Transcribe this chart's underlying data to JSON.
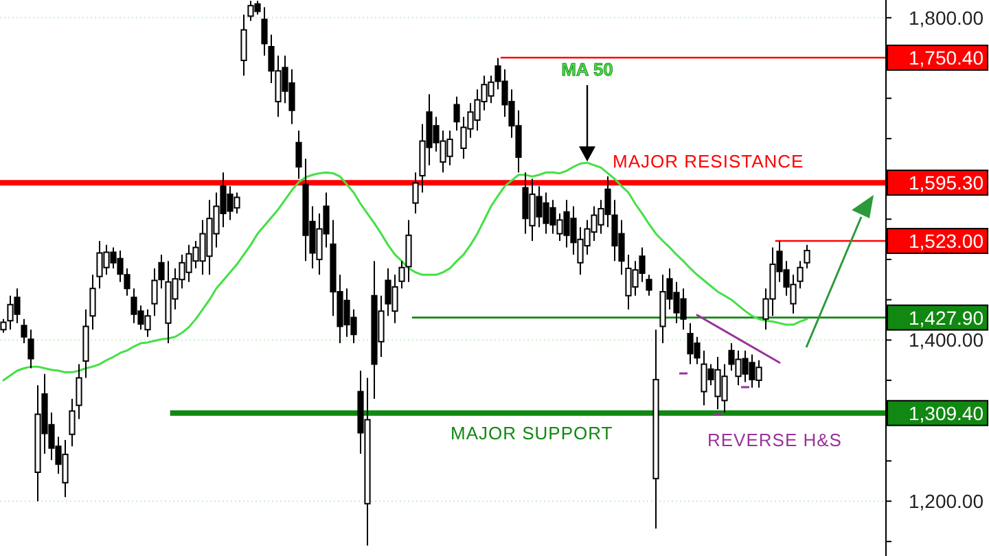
{
  "chart_data": {
    "type": "candlestick",
    "categories": [
      null,
      null,
      null,
      null,
      null,
      null,
      null,
      null,
      null,
      null,
      null,
      null,
      null,
      null,
      null,
      null,
      null,
      null,
      null,
      null,
      null,
      null,
      null,
      null,
      null,
      null,
      null,
      null,
      null,
      null,
      null,
      null,
      null,
      null,
      null,
      null,
      null,
      null,
      null,
      null,
      null,
      null,
      null,
      null,
      null,
      null,
      null,
      null,
      null,
      null,
      null,
      null,
      null,
      null,
      null,
      null,
      null,
      null,
      null,
      null,
      null,
      null,
      null,
      null,
      null,
      null,
      null,
      null,
      null,
      null,
      null,
      null,
      null,
      null,
      null,
      null,
      null,
      null,
      null,
      null,
      null,
      null,
      null,
      null,
      null,
      null,
      null,
      null,
      null,
      null,
      null,
      null,
      null,
      null,
      null,
      null,
      null,
      null,
      null,
      null,
      null,
      null,
      null,
      null,
      null,
      null,
      null,
      null,
      null,
      null,
      null,
      null,
      null,
      null,
      null,
      null,
      null,
      null,
      null,
      null,
      null,
      null,
      null,
      null,
      null,
      null,
      null,
      null,
      null
    ],
    "ohlc": [
      [
        1413,
        1426,
        1409,
        1422
      ],
      [
        1424,
        1455,
        1413,
        1444
      ],
      [
        1453,
        1464,
        1421,
        1432
      ],
      [
        1418,
        1426,
        1396,
        1404
      ],
      [
        1401,
        1413,
        1365,
        1377
      ],
      [
        1236,
        1344,
        1200,
        1308
      ],
      [
        1333,
        1358,
        1259,
        1284
      ],
      [
        1295,
        1310,
        1251,
        1266
      ],
      [
        1268,
        1280,
        1234,
        1246
      ],
      [
        1223,
        1276,
        1205,
        1258
      ],
      [
        1283,
        1327,
        1268,
        1312
      ],
      [
        1319,
        1370,
        1302,
        1353
      ],
      [
        1374,
        1438,
        1353,
        1417
      ],
      [
        1430,
        1481,
        1413,
        1464
      ],
      [
        1479,
        1523,
        1464,
        1508
      ],
      [
        1490,
        1518,
        1481,
        1509
      ],
      [
        1509,
        1515,
        1489,
        1496
      ],
      [
        1501,
        1511,
        1472,
        1482
      ],
      [
        1481,
        1489,
        1455,
        1464
      ],
      [
        1453,
        1464,
        1421,
        1432
      ],
      [
        1436,
        1443,
        1413,
        1420
      ],
      [
        1413,
        1438,
        1404,
        1430
      ],
      [
        1445,
        1489,
        1430,
        1474
      ],
      [
        1496,
        1506,
        1464,
        1475
      ],
      [
        1421,
        1498,
        1396,
        1472
      ],
      [
        1451,
        1489,
        1438,
        1476
      ],
      [
        1475,
        1506,
        1464,
        1496
      ],
      [
        1484,
        1518,
        1472,
        1507
      ],
      [
        1498,
        1523,
        1489,
        1515
      ],
      [
        1498,
        1549,
        1481,
        1532
      ],
      [
        1504,
        1574,
        1481,
        1551
      ],
      [
        1532,
        1583,
        1515,
        1566
      ],
      [
        1591,
        1608,
        1540,
        1557
      ],
      [
        1581,
        1591,
        1549,
        1560
      ],
      [
        1564,
        1583,
        1557,
        1577
      ],
      [
        1747,
        1804,
        1728,
        1785
      ],
      [
        1802,
        1821,
        1796,
        1815
      ],
      [
        1817,
        1821,
        1804,
        1808
      ],
      [
        1798,
        1813,
        1753,
        1768
      ],
      [
        1764,
        1779,
        1719,
        1734
      ],
      [
        1696,
        1753,
        1677,
        1734
      ],
      [
        1738,
        1753,
        1694,
        1709
      ],
      [
        1719,
        1736,
        1668,
        1685
      ],
      [
        1645,
        1660,
        1600,
        1615
      ],
      [
        1593,
        1625,
        1498,
        1530
      ],
      [
        1547,
        1566,
        1489,
        1508
      ],
      [
        1500,
        1557,
        1481,
        1538
      ],
      [
        1566,
        1583,
        1515,
        1532
      ],
      [
        1519,
        1549,
        1430,
        1460
      ],
      [
        1460,
        1481,
        1396,
        1417
      ],
      [
        1449,
        1464,
        1404,
        1419
      ],
      [
        1428,
        1438,
        1396,
        1407
      ],
      [
        1336,
        1362,
        1259,
        1285
      ],
      [
        1197,
        1353,
        1145,
        1301
      ],
      [
        1455,
        1498,
        1327,
        1370
      ],
      [
        1398,
        1455,
        1379,
        1436
      ],
      [
        1474,
        1489,
        1430,
        1445
      ],
      [
        1436,
        1481,
        1421,
        1466
      ],
      [
        1473,
        1498,
        1464,
        1490
      ],
      [
        1491,
        1549,
        1472,
        1530
      ],
      [
        1570,
        1608,
        1557,
        1595
      ],
      [
        1604,
        1668,
        1583,
        1647
      ],
      [
        1683,
        1705,
        1617,
        1639
      ],
      [
        1666,
        1677,
        1634,
        1645
      ],
      [
        1621,
        1660,
        1608,
        1647
      ],
      [
        1628,
        1660,
        1617,
        1649
      ],
      [
        1692,
        1702,
        1660,
        1671
      ],
      [
        1638,
        1677,
        1625,
        1664
      ],
      [
        1662,
        1694,
        1651,
        1683
      ],
      [
        1673,
        1711,
        1660,
        1698
      ],
      [
        1696,
        1728,
        1685,
        1717
      ],
      [
        1703,
        1728,
        1694,
        1720
      ],
      [
        1740,
        1750,
        1711,
        1721
      ],
      [
        1721,
        1736,
        1677,
        1692
      ],
      [
        1696,
        1711,
        1651,
        1666
      ],
      [
        1666,
        1685,
        1608,
        1627
      ],
      [
        1589,
        1608,
        1532,
        1551
      ],
      [
        1542,
        1600,
        1523,
        1581
      ],
      [
        1578,
        1591,
        1540,
        1553
      ],
      [
        1570,
        1583,
        1532,
        1545
      ],
      [
        1564,
        1574,
        1532,
        1543
      ],
      [
        1532,
        1557,
        1523,
        1549
      ],
      [
        1559,
        1574,
        1515,
        1530
      ],
      [
        1551,
        1566,
        1506,
        1521
      ],
      [
        1496,
        1540,
        1481,
        1525
      ],
      [
        1517,
        1549,
        1506,
        1538
      ],
      [
        1534,
        1566,
        1523,
        1555
      ],
      [
        1543,
        1574,
        1532,
        1563
      ],
      [
        1587,
        1603,
        1540,
        1556
      ],
      [
        1555,
        1574,
        1498,
        1517
      ],
      [
        1532,
        1549,
        1481,
        1498
      ],
      [
        1455,
        1506,
        1438,
        1489
      ],
      [
        1466,
        1498,
        1455,
        1487
      ],
      [
        1504,
        1515,
        1472,
        1483
      ],
      [
        1475,
        1481,
        1455,
        1462
      ],
      [
        1228,
        1413,
        1166,
        1351
      ],
      [
        1417,
        1481,
        1396,
        1460
      ],
      [
        1476,
        1489,
        1438,
        1451
      ],
      [
        1459,
        1472,
        1421,
        1434
      ],
      [
        1451,
        1464,
        1413,
        1426
      ],
      [
        1408,
        1421,
        1370,
        1383
      ],
      [
        1396,
        1404,
        1370,
        1378
      ],
      [
        1336,
        1387,
        1319,
        1370
      ],
      [
        1364,
        1370,
        1344,
        1351
      ],
      [
        1330,
        1379,
        1314,
        1363
      ],
      [
        1325,
        1370,
        1310,
        1355
      ],
      [
        1387,
        1396,
        1362,
        1370
      ],
      [
        1355,
        1387,
        1344,
        1376
      ],
      [
        1377,
        1387,
        1348,
        1358
      ],
      [
        1372,
        1382,
        1341,
        1351
      ],
      [
        1350,
        1375,
        1341,
        1366
      ],
      [
        1426,
        1464,
        1413,
        1451
      ],
      [
        1451,
        1515,
        1430,
        1494
      ],
      [
        1510,
        1523,
        1472,
        1485
      ],
      [
        1487,
        1498,
        1455,
        1466
      ],
      [
        1445,
        1481,
        1433,
        1469
      ],
      [
        1473,
        1498,
        1464,
        1490
      ],
      [
        1496,
        1518,
        1489,
        1511
      ],
      null,
      null,
      null,
      null,
      null,
      null,
      null,
      null,
      null,
      null,
      null
    ],
    "series": [
      {
        "name": "MA 50",
        "type": "line",
        "color": "#44e044",
        "values": [
          1350,
          1356,
          1362,
          1365,
          1367,
          1367,
          1365,
          1363,
          1362,
          1360,
          1360,
          1362,
          1365,
          1367,
          1370,
          1375,
          1379,
          1384,
          1387,
          1392,
          1396,
          1397,
          1399,
          1401,
          1402,
          1404,
          1409,
          1416,
          1426,
          1438,
          1450,
          1464,
          1474,
          1484,
          1494,
          1506,
          1518,
          1532,
          1542,
          1552,
          1562,
          1574,
          1586,
          1596,
          1602,
          1605,
          1607,
          1608,
          1607,
          1603,
          1593,
          1583,
          1569,
          1557,
          1545,
          1532,
          1518,
          1506,
          1498,
          1489,
          1484,
          1481,
          1481,
          1481,
          1484,
          1489,
          1498,
          1506,
          1518,
          1532,
          1549,
          1566,
          1579,
          1591,
          1598,
          1605,
          1605,
          1603,
          1605,
          1608,
          1608,
          1607,
          1610,
          1615,
          1619,
          1620,
          1617,
          1614,
          1607,
          1600,
          1591,
          1583,
          1569,
          1557,
          1544,
          1532,
          1523,
          1515,
          1506,
          1498,
          1489,
          1481,
          1474,
          1467,
          1460,
          1455,
          1450,
          1443,
          1436,
          1430,
          1426,
          1424,
          1423,
          1421,
          1419,
          1419,
          1423,
          1426,
          null,
          null,
          null,
          null,
          null,
          null,
          null,
          null,
          null,
          null,
          null
        ]
      },
      {
        "type": "line",
        "color": "#993399",
        "values": [
          null,
          null,
          null,
          null,
          null,
          null,
          null,
          null,
          null,
          null,
          null,
          null,
          null,
          null,
          null,
          null,
          null,
          null,
          null,
          null,
          null,
          null,
          null,
          null,
          null,
          null,
          null,
          null,
          null,
          null,
          null,
          null,
          null,
          null,
          null,
          null,
          null,
          null,
          null,
          null,
          null,
          null,
          null,
          null,
          null,
          null,
          null,
          null,
          null,
          null,
          null,
          null,
          null,
          null,
          null,
          null,
          null,
          null,
          null,
          null,
          null,
          null,
          null,
          null,
          null,
          null,
          null,
          null,
          null,
          null,
          null,
          null,
          null,
          null,
          null,
          null,
          null,
          null,
          null,
          null,
          null,
          null,
          null,
          null,
          null,
          null,
          null,
          null,
          null,
          null,
          null,
          null,
          null,
          null,
          null,
          null,
          null,
          null,
          null,
          null,
          null,
          1431,
          null,
          null,
          null,
          null,
          null,
          null,
          null,
          null,
          null,
          null,
          null,
          1372,
          null,
          null,
          null,
          null,
          null,
          null,
          null,
          null,
          null,
          null,
          null,
          null,
          null,
          null,
          null
        ]
      }
    ],
    "ylim": [
      1132,
      1822
    ],
    "yticks": [
      {
        "value": 1150,
        "label": null
      },
      {
        "value": 1200,
        "label": "1,200.00"
      },
      {
        "value": 1250,
        "label": null
      },
      {
        "value": 1300,
        "label": null
      },
      {
        "value": 1350,
        "label": null
      },
      {
        "value": 1400,
        "label": "1,400.00"
      },
      {
        "value": 1450,
        "label": null
      },
      {
        "value": 1500,
        "label": null
      },
      {
        "value": 1550,
        "label": null
      },
      {
        "value": 1600,
        "label": null
      },
      {
        "value": 1650,
        "label": null
      },
      {
        "value": 1700,
        "label": null
      },
      {
        "value": 1750,
        "label": null
      },
      {
        "value": 1800,
        "label": "1,800.00"
      }
    ],
    "grid": "y",
    "ref_lines": [
      {
        "axis": "y",
        "value": 1750.4,
        "label": "1,750.40",
        "color": "#ff0000",
        "line_style": "solid"
      },
      {
        "axis": "y",
        "value": 1595.3,
        "label": "1,595.30",
        "color": "#ff0000",
        "line_style": "solid"
      },
      {
        "axis": "y",
        "value": 1523,
        "label": "1,523.00",
        "color": "#ff0000",
        "line_style": "solid"
      },
      {
        "axis": "y",
        "value": 1427.9,
        "label": "1,427.90",
        "color": "#118811",
        "line_style": "solid"
      },
      {
        "axis": "y",
        "value": 1309.4,
        "label": "1,309.40",
        "color": "#118811",
        "line_style": "solid"
      }
    ],
    "annotations": [
      {
        "text": "MAJOR RESISTANCE",
        "y": 1595.3
      },
      {
        "text": "MAJOR SUPPORT",
        "y": 1309.4
      },
      "REVERSE H&S"
    ]
  }
}
